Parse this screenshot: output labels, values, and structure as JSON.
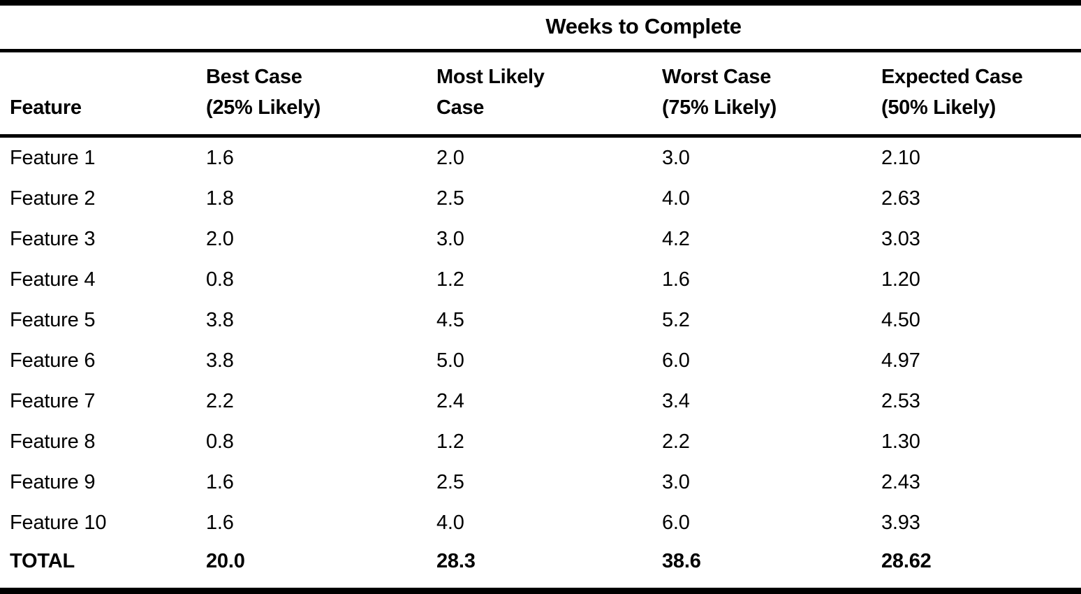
{
  "chart_data": {
    "type": "table",
    "title": "Weeks to Complete",
    "columns": [
      {
        "key": "feature",
        "line1": "Feature",
        "line2": ""
      },
      {
        "key": "best",
        "line1": "Best Case",
        "line2": "(25% Likely)"
      },
      {
        "key": "most",
        "line1": "Most Likely",
        "line2": "Case"
      },
      {
        "key": "worst",
        "line1": "Worst Case",
        "line2": "(75% Likely)"
      },
      {
        "key": "expected",
        "line1": "Expected Case",
        "line2": "(50% Likely)"
      }
    ],
    "rows": [
      [
        "Feature 1",
        "1.6",
        "2.0",
        "3.0",
        "2.10"
      ],
      [
        "Feature 2",
        "1.8",
        "2.5",
        "4.0",
        "2.63"
      ],
      [
        "Feature 3",
        "2.0",
        "3.0",
        "4.2",
        "3.03"
      ],
      [
        "Feature 4",
        "0.8",
        "1.2",
        "1.6",
        "1.20"
      ],
      [
        "Feature 5",
        "3.8",
        "4.5",
        "5.2",
        "4.50"
      ],
      [
        "Feature 6",
        "3.8",
        "5.0",
        "6.0",
        "4.97"
      ],
      [
        "Feature 7",
        "2.2",
        "2.4",
        "3.4",
        "2.53"
      ],
      [
        "Feature 8",
        "0.8",
        "1.2",
        "2.2",
        "1.30"
      ],
      [
        "Feature 9",
        "1.6",
        "2.5",
        "3.0",
        "2.43"
      ],
      [
        "Feature 10",
        "1.6",
        "4.0",
        "6.0",
        "3.93"
      ]
    ],
    "total_row": [
      "TOTAL",
      "20.0",
      "28.3",
      "38.6",
      "28.62"
    ],
    "text_color": "#000000",
    "background_color": "#ffffff",
    "layout": {
      "grid": "horizontal-rules-only",
      "title_position": "spanning-numeric-columns"
    }
  }
}
